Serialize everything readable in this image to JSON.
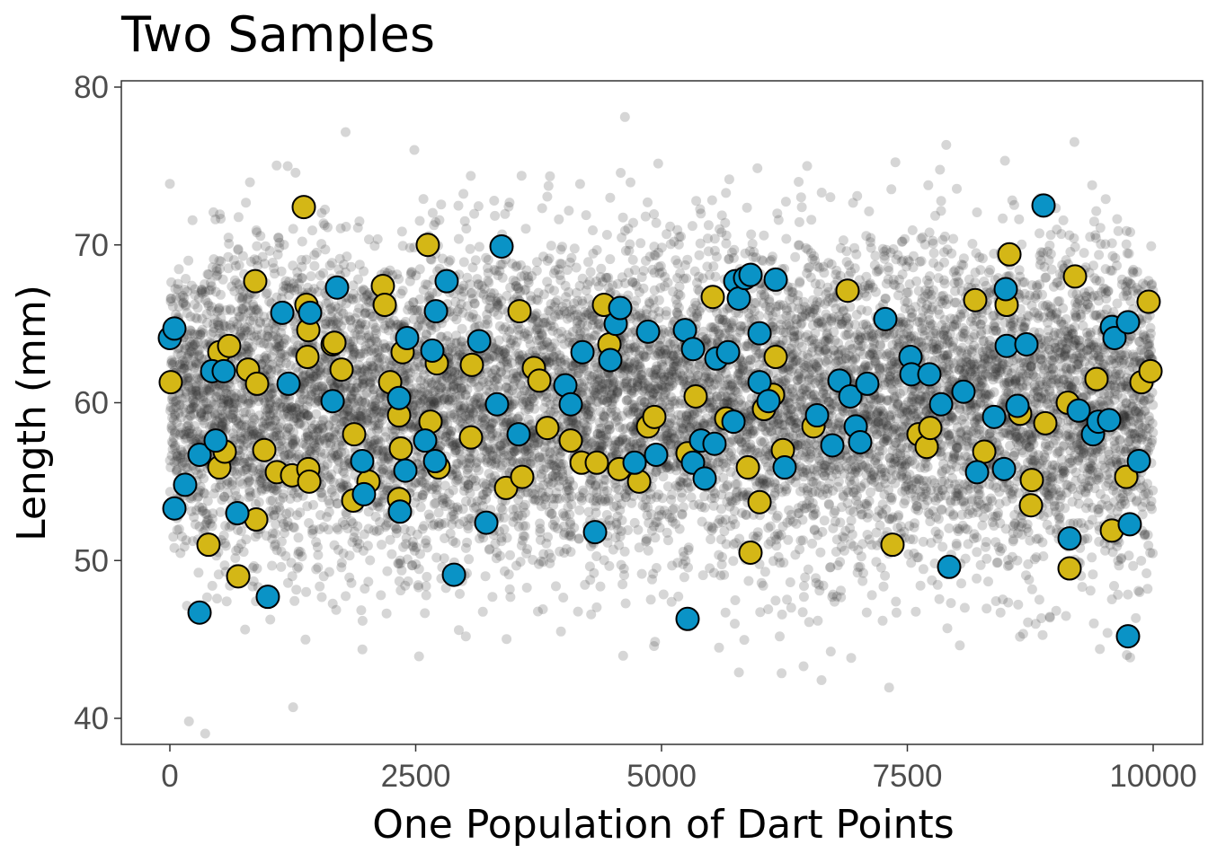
{
  "chart_data": {
    "type": "scatter",
    "title": "Two Samples",
    "xlabel": "One Population of Dart Points",
    "ylabel": "Length (mm)",
    "xlim": [
      -500,
      10500
    ],
    "ylim": [
      38.5,
      80.5
    ],
    "x_ticks": [
      0,
      2500,
      5000,
      7500,
      10000
    ],
    "x_tick_labels": [
      "0",
      "2500",
      "5000",
      "7500",
      "10000"
    ],
    "y_ticks": [
      40,
      50,
      60,
      70,
      80
    ],
    "y_tick_labels": [
      "40",
      "50",
      "60",
      "70",
      "80"
    ],
    "grid": false,
    "legend": "none",
    "population": {
      "name": "population",
      "n": 10000,
      "mean": 60,
      "sd": 5,
      "color": "#333333",
      "opacity": 0.2
    },
    "series": [
      {
        "name": "sample-yellow",
        "color": "#D4B716",
        "points": [
          [
            9,
            61.3
          ],
          [
            393,
            51.0
          ],
          [
            503,
            55.9
          ],
          [
            503,
            63.2
          ],
          [
            603,
            63.6
          ],
          [
            558,
            56.9
          ],
          [
            695,
            49.0
          ],
          [
            795,
            62.1
          ],
          [
            868,
            67.7
          ],
          [
            878,
            52.6
          ],
          [
            887,
            61.2
          ],
          [
            960,
            57.0
          ],
          [
            1088,
            55.6
          ],
          [
            1243,
            55.4
          ],
          [
            1362,
            72.4
          ],
          [
            1389,
            66.2
          ],
          [
            1408,
            64.6
          ],
          [
            1399,
            62.9
          ],
          [
            1408,
            55.8
          ],
          [
            1417,
            55.0
          ],
          [
            1655,
            63.7
          ],
          [
            1673,
            63.8
          ],
          [
            1746,
            62.1
          ],
          [
            1865,
            53.8
          ],
          [
            1874,
            58.0
          ],
          [
            2020,
            55.0
          ],
          [
            2166,
            67.4
          ],
          [
            2185,
            66.2
          ],
          [
            2240,
            61.3
          ],
          [
            2331,
            53.9
          ],
          [
            2331,
            59.2
          ],
          [
            2349,
            57.1
          ],
          [
            2367,
            63.2
          ],
          [
            2623,
            70.0
          ],
          [
            2651,
            58.8
          ],
          [
            2715,
            62.5
          ],
          [
            2733,
            55.9
          ],
          [
            3071,
            62.4
          ],
          [
            3062,
            57.8
          ],
          [
            3419,
            54.6
          ],
          [
            3556,
            65.8
          ],
          [
            3583,
            55.3
          ],
          [
            3702,
            62.2
          ],
          [
            3757,
            61.4
          ],
          [
            3839,
            58.4
          ],
          [
            4077,
            57.6
          ],
          [
            4187,
            56.2
          ],
          [
            4342,
            56.2
          ],
          [
            4415,
            66.2
          ],
          [
            4470,
            63.7
          ],
          [
            4571,
            55.8
          ],
          [
            4772,
            55.0
          ],
          [
            4863,
            58.5
          ],
          [
            4927,
            59.1
          ],
          [
            5265,
            56.8
          ],
          [
            5347,
            60.4
          ],
          [
            5521,
            66.7
          ],
          [
            5658,
            59.0
          ],
          [
            5878,
            55.9
          ],
          [
            5905,
            50.5
          ],
          [
            5997,
            53.7
          ],
          [
            6042,
            59.6
          ],
          [
            6134,
            60.5
          ],
          [
            6161,
            62.9
          ],
          [
            6234,
            57.0
          ],
          [
            6545,
            58.5
          ],
          [
            6892,
            67.1
          ],
          [
            7349,
            51.0
          ],
          [
            7614,
            58.0
          ],
          [
            7697,
            57.2
          ],
          [
            7733,
            58.4
          ],
          [
            8190,
            66.5
          ],
          [
            8282,
            56.9
          ],
          [
            8510,
            66.2
          ],
          [
            8538,
            69.4
          ],
          [
            8647,
            59.3
          ],
          [
            8757,
            53.5
          ],
          [
            8766,
            55.1
          ],
          [
            8903,
            58.7
          ],
          [
            9132,
            60.0
          ],
          [
            9150,
            49.5
          ],
          [
            9205,
            68.0
          ],
          [
            9424,
            61.5
          ],
          [
            9580,
            51.9
          ],
          [
            9726,
            55.3
          ],
          [
            9881,
            61.3
          ],
          [
            9954,
            66.4
          ],
          [
            9973,
            62.0
          ]
        ]
      },
      {
        "name": "sample-blue",
        "color": "#0A93C6",
        "points": [
          [
            0,
            64.1
          ],
          [
            46,
            64.7
          ],
          [
            46,
            53.3
          ],
          [
            155,
            54.8
          ],
          [
            302,
            46.7
          ],
          [
            302,
            56.7
          ],
          [
            430,
            62.0
          ],
          [
            466,
            57.6
          ],
          [
            548,
            62.0
          ],
          [
            686,
            53.0
          ],
          [
            996,
            47.7
          ],
          [
            1207,
            61.2
          ],
          [
            1143,
            65.7
          ],
          [
            1426,
            65.7
          ],
          [
            1700,
            67.3
          ],
          [
            1655,
            60.1
          ],
          [
            1956,
            56.3
          ],
          [
            1974,
            54.2
          ],
          [
            2340,
            53.1
          ],
          [
            2331,
            60.3
          ],
          [
            2395,
            55.7
          ],
          [
            2413,
            64.1
          ],
          [
            2596,
            57.6
          ],
          [
            2669,
            63.3
          ],
          [
            2697,
            56.3
          ],
          [
            2706,
            65.8
          ],
          [
            2815,
            67.7
          ],
          [
            2889,
            49.1
          ],
          [
            3145,
            63.9
          ],
          [
            3218,
            52.4
          ],
          [
            3327,
            59.9
          ],
          [
            3373,
            69.9
          ],
          [
            3547,
            58.0
          ],
          [
            4022,
            61.1
          ],
          [
            4077,
            59.9
          ],
          [
            4196,
            63.2
          ],
          [
            4324,
            51.8
          ],
          [
            4479,
            62.7
          ],
          [
            4534,
            65.0
          ],
          [
            4580,
            66.0
          ],
          [
            4726,
            56.2
          ],
          [
            4863,
            64.5
          ],
          [
            4945,
            56.7
          ],
          [
            5238,
            64.6
          ],
          [
            5265,
            46.3
          ],
          [
            5320,
            63.4
          ],
          [
            5320,
            56.2
          ],
          [
            5402,
            57.6
          ],
          [
            5439,
            55.2
          ],
          [
            5539,
            57.4
          ],
          [
            5558,
            62.8
          ],
          [
            5677,
            63.2
          ],
          [
            5732,
            58.8
          ],
          [
            5750,
            67.7
          ],
          [
            5786,
            66.6
          ],
          [
            5850,
            67.9
          ],
          [
            5905,
            68.1
          ],
          [
            5997,
            64.4
          ],
          [
            5997,
            61.3
          ],
          [
            6088,
            60.1
          ],
          [
            6161,
            67.8
          ],
          [
            6252,
            55.9
          ],
          [
            6582,
            59.2
          ],
          [
            6737,
            57.3
          ],
          [
            6810,
            61.4
          ],
          [
            6920,
            60.4
          ],
          [
            6975,
            58.5
          ],
          [
            7020,
            57.5
          ],
          [
            7093,
            61.2
          ],
          [
            7276,
            65.3
          ],
          [
            7532,
            62.9
          ],
          [
            7541,
            61.8
          ],
          [
            7724,
            61.8
          ],
          [
            7843,
            59.9
          ],
          [
            7925,
            49.6
          ],
          [
            8071,
            60.7
          ],
          [
            8209,
            55.6
          ],
          [
            8382,
            59.1
          ],
          [
            8483,
            55.8
          ],
          [
            8501,
            67.2
          ],
          [
            8510,
            63.6
          ],
          [
            8620,
            59.8
          ],
          [
            8711,
            63.7
          ],
          [
            8885,
            72.5
          ],
          [
            9150,
            51.4
          ],
          [
            9242,
            59.5
          ],
          [
            9388,
            58.0
          ],
          [
            9443,
            58.8
          ],
          [
            9552,
            58.9
          ],
          [
            9580,
            64.8
          ],
          [
            9607,
            64.1
          ],
          [
            9744,
            65.1
          ],
          [
            9762,
            52.3
          ],
          [
            9744,
            45.2
          ],
          [
            9854,
            56.3
          ]
        ]
      }
    ]
  }
}
